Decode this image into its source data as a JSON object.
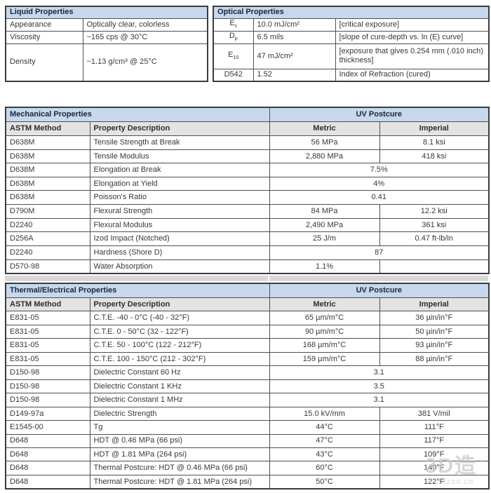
{
  "colors": {
    "header_bg": "#c5d8ed",
    "subheader_bg": "#e3e3e3",
    "spacer_bg": "#d8d8d8",
    "border": "#4f4f4f",
    "text": "#383838",
    "header_text": "#19263a"
  },
  "liquid_table": {
    "title": "Liquid Properties",
    "rows": [
      {
        "property": "Appearance",
        "value": "Optically clear, colorless"
      },
      {
        "property": "Viscosity",
        "value": "~165 cps @ 30°C"
      },
      {
        "property": "Density",
        "value": "~1.13 g/cm³ @ 25°C"
      }
    ]
  },
  "optical_table": {
    "title": "Optical Properties",
    "rows": [
      {
        "symbol": "E",
        "sub": "c",
        "value": "10.0 mJ/cm²",
        "description": "[critical exposure]"
      },
      {
        "symbol": "D",
        "sub": "p",
        "value": "6.5 mils",
        "description": "[slope of cure-depth vs. ln (E) curve]"
      },
      {
        "symbol": "E",
        "sub": "10",
        "value": "47 mJ/cm²",
        "description": "[exposure that gives 0.254 mm (.010 inch) thickness]"
      },
      {
        "symbol": "D542",
        "sub": "",
        "value": "1.52",
        "description": "Index of Refraction (cured)"
      }
    ]
  },
  "mechanical_table": {
    "title": "Mechanical Properties",
    "group_header": "UV Postcure",
    "columns": [
      "ASTM Method",
      "Property Description",
      "Metric",
      "Imperial"
    ],
    "rows": [
      {
        "method": "D638M",
        "description": "Tensile Strength at Break",
        "metric": "56 MPa",
        "imperial": "8.1 ksi",
        "span": false
      },
      {
        "method": "D638M",
        "description": "Tensile Modulus",
        "metric": "2,880 MPa",
        "imperial": "418 ksi",
        "span": false
      },
      {
        "method": "D638M",
        "description": "Elongation at Break",
        "metric": "7.5%",
        "imperial": null,
        "span": true
      },
      {
        "method": "D638M",
        "description": "Elongation at Yield",
        "metric": "4%",
        "imperial": null,
        "span": true
      },
      {
        "method": "D638M",
        "description": "Poisson's Ratio",
        "metric": "0.41",
        "imperial": null,
        "span": true
      },
      {
        "method": "D790M",
        "description": "Flexural Strength",
        "metric": "84 MPa",
        "imperial": "12.2 ksi",
        "span": false
      },
      {
        "method": "D2240",
        "description": "Flexural Modulus",
        "metric": "2,490 MPa",
        "imperial": "361 ksi",
        "span": false
      },
      {
        "method": "D256A",
        "description": "Izod Impact (Notched)",
        "metric": "25 J/m",
        "imperial": "0.47 ft-lb/in",
        "span": false
      },
      {
        "method": "D2240",
        "description": "Hardness (Shore D)",
        "metric": "87",
        "imperial": null,
        "span": true
      },
      {
        "method": "D570-98",
        "description": "Water Absorption",
        "metric": "1.1%",
        "imperial": "",
        "span": false
      }
    ]
  },
  "thermal_table": {
    "title": "Thermal/Electrical Properties",
    "group_header": "UV Postcure",
    "columns": [
      "ASTM Method",
      "Property Description",
      "Metric",
      "Imperial"
    ],
    "rows": [
      {
        "method": "E831-05",
        "description": "C.T.E. -40 - 0°C (-40 - 32°F)",
        "metric": "65 µm/m°C",
        "imperial": "36 µin/in°F",
        "span": false
      },
      {
        "method": "E831-05",
        "description": "C.T.E. 0 - 50°C (32 - 122°F)",
        "metric": "90 µm/m°C",
        "imperial": "50 µin/in°F",
        "span": false
      },
      {
        "method": "E831-05",
        "description": "C.T.E. 50 - 100°C (122 - 212°F)",
        "metric": "168 µm/m°C",
        "imperial": "93 µin/in°F",
        "span": false
      },
      {
        "method": "E831-05",
        "description": "C.T.E. 100 - 150°C (212 - 302°F)",
        "metric": "159 µm/m°C",
        "imperial": "88 µin/in°F",
        "span": false
      },
      {
        "method": "D150-98",
        "description": "Dielectric Constant 60 Hz",
        "metric": "3.1",
        "imperial": null,
        "span": true
      },
      {
        "method": "D150-98",
        "description": "Dielectric Constant 1 KHz",
        "metric": "3.5",
        "imperial": null,
        "span": true
      },
      {
        "method": "D150-98",
        "description": "Dielectric Constant 1 MHz",
        "metric": "3.1",
        "imperial": null,
        "span": true
      },
      {
        "method": "D149-97a",
        "description": "Dielectric Strength",
        "metric": "15.0 kV/mm",
        "imperial": "381 V/mil",
        "span": false
      },
      {
        "method": "E1545-00",
        "description": "Tg",
        "metric": "44°C",
        "imperial": "111°F",
        "span": false
      },
      {
        "method": "D648",
        "description": "HDT @ 0.46 MPa (66 psi)",
        "metric": "47°C",
        "imperial": "117°F",
        "span": false
      },
      {
        "method": "D648",
        "description": "HDT @ 1.81 MPa (264 psi)",
        "metric": "43°C",
        "imperial": "109°F",
        "span": false
      },
      {
        "method": "D648",
        "description": "Thermal Postcure: HDT @ 0.46 MPa (66 psi)",
        "metric": "60°C",
        "imperial": "140°F",
        "span": false
      },
      {
        "method": "D648",
        "description": "Thermal Postcure: HDT @ 1.81 MPa (264 psi)",
        "metric": "50°C",
        "imperial": "122°F",
        "span": false
      }
    ]
  },
  "watermark": {
    "logo_text": "3D造",
    "trademark": "™",
    "site_text": "3dzao.cn"
  }
}
